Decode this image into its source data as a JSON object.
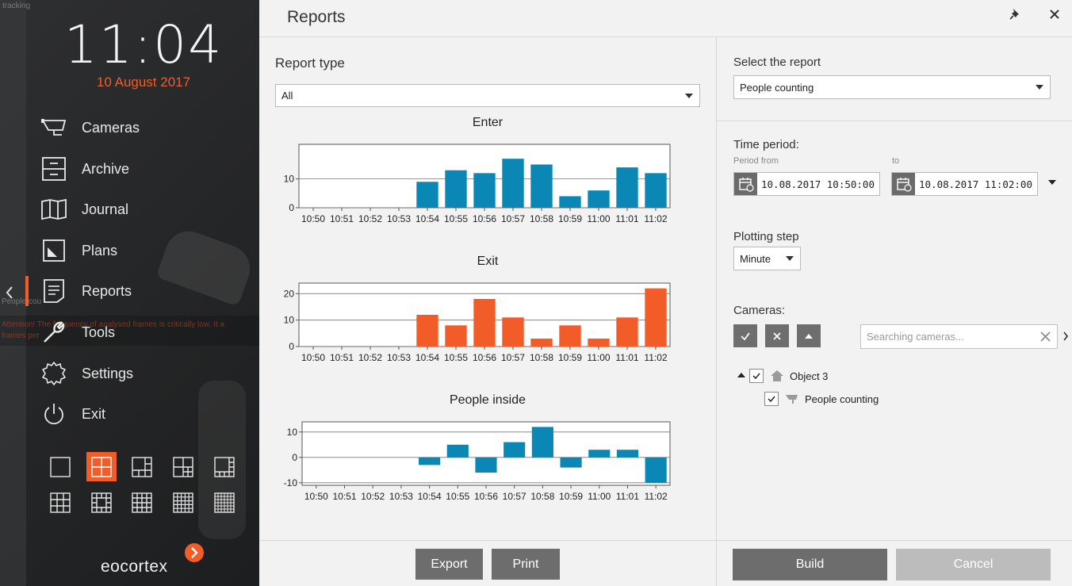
{
  "sidebar": {
    "clock": "11:04",
    "date": "10 August 2017",
    "background_texts": [
      "tracking",
      "People cou",
      "Attention! The frequency of analysed frames is critically low. It a",
      "frames per"
    ],
    "items": [
      {
        "label": "Cameras",
        "icon": "camera-icon"
      },
      {
        "label": "Archive",
        "icon": "archive-icon"
      },
      {
        "label": "Journal",
        "icon": "journal-icon"
      },
      {
        "label": "Plans",
        "icon": "plans-icon"
      },
      {
        "label": "Reports",
        "icon": "reports-icon",
        "active": true
      },
      {
        "label": "Tools",
        "icon": "wrench-icon"
      },
      {
        "label": "Settings",
        "icon": "gear-icon"
      },
      {
        "label": "Exit",
        "icon": "power-icon"
      }
    ],
    "layouts": [
      "1x1",
      "2x2",
      "1+5",
      "1+7",
      "1+9",
      "3x3",
      "1+12",
      "4x4",
      "5x5",
      "6x6"
    ],
    "active_layout": 1,
    "logo": "eocortex",
    "accent": "#f25c28"
  },
  "panel": {
    "title": "Reports",
    "report_type_label": "Report type",
    "report_type_value": "All",
    "export_label": "Export",
    "print_label": "Print"
  },
  "chart_data": [
    {
      "type": "bar",
      "title": "Enter",
      "categories": [
        "10:50",
        "10:51",
        "10:52",
        "10:53",
        "10:54",
        "10:55",
        "10:56",
        "10:57",
        "10:58",
        "10:59",
        "11:00",
        "11:01",
        "11:02"
      ],
      "values": [
        0,
        0,
        0,
        0,
        9,
        13,
        12,
        17,
        15,
        4,
        6,
        14,
        12
      ],
      "ylim": [
        0,
        22
      ],
      "yticks": [
        0,
        10
      ],
      "color": "#0a87b4",
      "grid": true
    },
    {
      "type": "bar",
      "title": "Exit",
      "categories": [
        "10:50",
        "10:51",
        "10:52",
        "10:53",
        "10:54",
        "10:55",
        "10:56",
        "10:57",
        "10:58",
        "10:59",
        "11:00",
        "11:01",
        "11:02"
      ],
      "values": [
        0,
        0,
        0,
        0,
        12,
        8,
        18,
        11,
        3,
        8,
        3,
        11,
        22
      ],
      "ylim": [
        0,
        24
      ],
      "yticks": [
        0,
        10,
        20
      ],
      "color": "#f25c28",
      "grid": true
    },
    {
      "type": "bar",
      "title": "People inside",
      "categories": [
        "10:50",
        "10:51",
        "10:52",
        "10:53",
        "10:54",
        "10:55",
        "10:56",
        "10:57",
        "10:58",
        "10:59",
        "11:00",
        "11:01",
        "11:02"
      ],
      "values": [
        0,
        0,
        0,
        0,
        -3,
        5,
        -6,
        6,
        12,
        -4,
        3,
        3,
        -10
      ],
      "ylim": [
        -11,
        14
      ],
      "yticks": [
        -10,
        0,
        10
      ],
      "color": "#0a87b4",
      "grid": true
    }
  ],
  "settings": {
    "select_report_label": "Select the report",
    "select_report_value": "People counting",
    "time_period_label": "Time period:",
    "period_from_label": "Period from",
    "period_from_value": "10.08.2017  10:50:00",
    "to_label": "to",
    "to_value": "10.08.2017  11:02:00",
    "plotting_step_label": "Plotting step",
    "plotting_step_value": "Minute",
    "cameras_label": "Cameras:",
    "search_placeholder": "Searching cameras...",
    "tree": [
      {
        "label": "Object 3",
        "checked": true,
        "level": 0
      },
      {
        "label": "People counting",
        "checked": true,
        "level": 1
      }
    ],
    "build_label": "Build",
    "cancel_label": "Cancel"
  }
}
